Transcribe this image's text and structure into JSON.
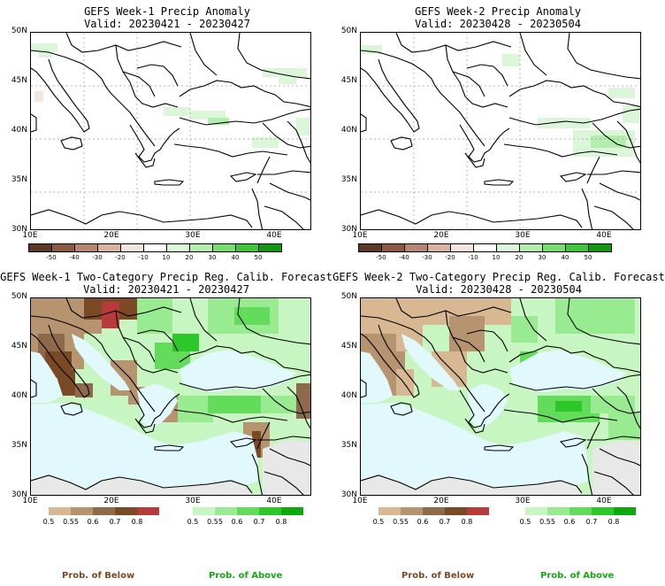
{
  "panels": {
    "p1": {
      "title": "GEFS Week-1 Precip Anomaly",
      "valid": "Valid: 20230421 - 20230427"
    },
    "p2": {
      "title": "GEFS Week-2 Precip Anomaly",
      "valid": "Valid: 20230428 - 20230504"
    },
    "p3": {
      "title": "GEFS Week-1 Two-Category Precip Reg. Calib. Forecast",
      "valid": "Valid: 20230421 - 20230427"
    },
    "p4": {
      "title": "GEFS Week-2 Two-Category Precip Reg. Calib. Forecast",
      "valid": "Valid: 20230428 - 20230504"
    }
  },
  "lat_labels": [
    "50N",
    "45N",
    "40N",
    "35N",
    "30N"
  ],
  "lon_labels": [
    "10E",
    "20E",
    "30E",
    "40E"
  ],
  "anomaly_scale": {
    "labels": [
      "-50",
      "-40",
      "-30",
      "-20",
      "-10",
      "10",
      "20",
      "30",
      "40",
      "50"
    ],
    "colors": [
      "#5c3a28",
      "#8c5a44",
      "#b58672",
      "#d8b3a4",
      "#f3e6df",
      "#ffffff",
      "#dcf6d9",
      "#b4eeae",
      "#78dd70",
      "#3fc43b",
      "#139612"
    ]
  },
  "prob_scale": {
    "below_labels": [
      "0.5",
      "0.55",
      "0.6",
      "0.7",
      "0.8"
    ],
    "below_colors": [
      "#d7b893",
      "#b6946f",
      "#8f6a4a",
      "#7a4a24",
      "#b83b3b"
    ],
    "above_labels": [
      "0.5",
      "0.55",
      "0.6",
      "0.7",
      "0.8"
    ],
    "above_colors": [
      "#c8f6c2",
      "#98eb90",
      "#62dc5a",
      "#2ec72a",
      "#0fa80e"
    ]
  },
  "legend_text": {
    "below": "Prob. of Below",
    "above": "Prob. of Above"
  },
  "colors": {
    "sea": "#e1f8fd",
    "land_gray": "#e8e8e8",
    "coast": "#000000"
  }
}
